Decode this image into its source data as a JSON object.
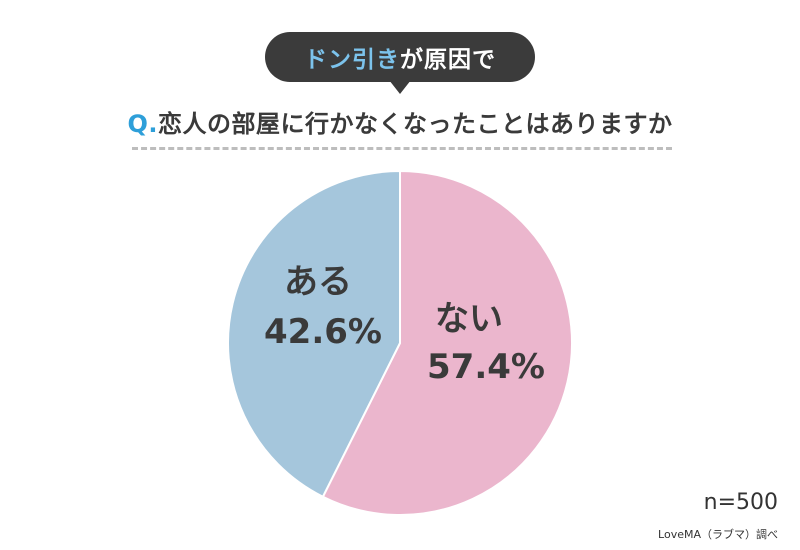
{
  "header": {
    "badge_accent": "ドン引き",
    "badge_rest": "が原因で",
    "question_prefix": "Q.",
    "question_text": "恋人の部屋に行かなくなったことはありますか"
  },
  "chart_data": {
    "type": "pie",
    "slices": [
      {
        "label": "ない",
        "value": 57.4,
        "value_label": "57.4%",
        "color": "#ebb6cd"
      },
      {
        "label": "ある",
        "value": 42.6,
        "value_label": "42.6%",
        "color": "#a5c6dc"
      }
    ],
    "start": "12 o'clock",
    "direction": "clockwise"
  },
  "footer": {
    "sample": "n=500",
    "source": "LoveMA（ラブマ）調べ"
  }
}
